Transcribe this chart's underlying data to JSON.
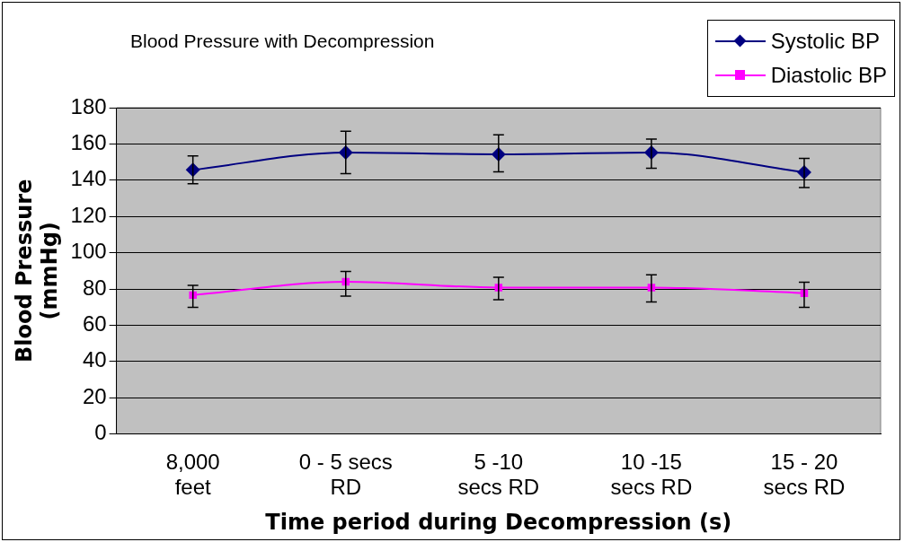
{
  "chart_data": {
    "type": "line",
    "title": "Blood Pressure with Decompression",
    "xlabel": "Time period during Decompression (s)",
    "ylabel": "Blood Pressure (mmHg)",
    "categories": [
      "8,000 feet",
      "0 - 5 secs RD",
      "5 -10 secs RD",
      "10 -15 secs RD",
      "15 - 20 secs RD"
    ],
    "series": [
      {
        "name": "Systolic BP",
        "color": "#000080",
        "marker": "diamond",
        "values": [
          145.7,
          155.3,
          154.3,
          155.3,
          144.4
        ],
        "errors": [
          [
            138,
            153.4
          ],
          [
            143.6,
            167
          ],
          [
            144.6,
            165
          ],
          [
            146.6,
            162.7
          ],
          [
            136,
            152
          ]
        ]
      },
      {
        "name": "Diastolic BP",
        "color": "#ff00ff",
        "marker": "square",
        "values": [
          76.6,
          84,
          80.8,
          80.8,
          77.7
        ],
        "errors": [
          [
            69.8,
            82
          ],
          [
            76,
            89.7
          ],
          [
            74,
            86.4
          ],
          [
            72.8,
            87.8
          ],
          [
            69.8,
            83.7
          ]
        ]
      }
    ],
    "ylim": [
      0,
      180
    ],
    "yticks": [
      0,
      20,
      40,
      60,
      80,
      100,
      120,
      140,
      160,
      180
    ],
    "grid": "y",
    "legend": "top right"
  }
}
